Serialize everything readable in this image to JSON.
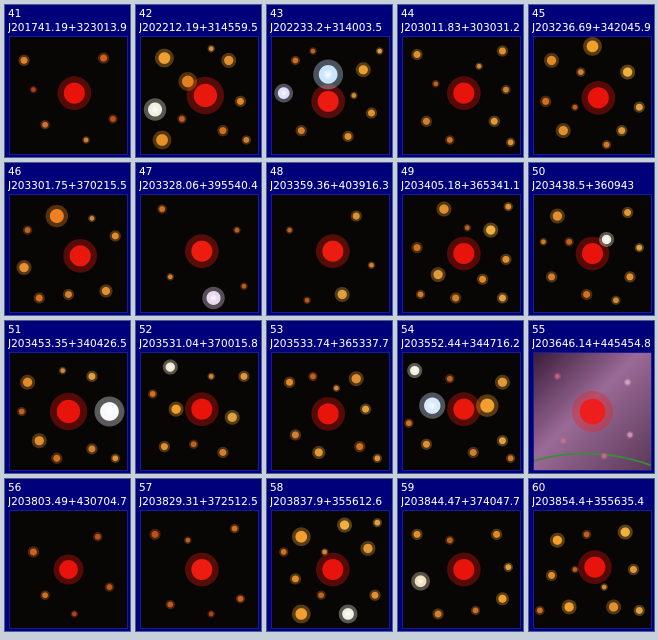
{
  "background_color": "#c8d0dc",
  "cell_color": "#00007a",
  "tiles": [
    {
      "index": "41",
      "name": "J201741.19+323013.9",
      "scene": "red-star-in-sparse-field"
    },
    {
      "index": "42",
      "name": "J202212.19+314559.5",
      "scene": "red-star-in-crowded-field"
    },
    {
      "index": "43",
      "name": "J202233.2+314003.5",
      "scene": "red-star-beside-blue-star"
    },
    {
      "index": "44",
      "name": "J203011.83+303031.2",
      "scene": "red-star-in-crowded-field"
    },
    {
      "index": "45",
      "name": "J203236.69+342045.9",
      "scene": "red-star-in-crowded-field"
    },
    {
      "index": "46",
      "name": "J203301.75+370215.5",
      "scene": "red-star-with-orange-neighbor"
    },
    {
      "index": "47",
      "name": "J203328.06+395540.4",
      "scene": "red-star-with-lavender-star-below"
    },
    {
      "index": "48",
      "name": "J203359.36+403916.3",
      "scene": "red-star-in-sparse-field"
    },
    {
      "index": "49",
      "name": "J203405.18+365341.1",
      "scene": "red-star-in-crowded-field"
    },
    {
      "index": "50",
      "name": "J203438.5+360943",
      "scene": "red-star-in-crowded-field"
    },
    {
      "index": "51",
      "name": "J203453.35+340426.5",
      "scene": "red-star-beside-bright-white-star"
    },
    {
      "index": "52",
      "name": "J203531.04+370015.8",
      "scene": "red-star-in-crowded-field"
    },
    {
      "index": "53",
      "name": "J203533.74+365337.7",
      "scene": "red-star-in-crowded-field"
    },
    {
      "index": "54",
      "name": "J203552.44+344716.2",
      "scene": "red-star-beside-blue-star"
    },
    {
      "index": "55",
      "name": "J203646.14+445454.8",
      "scene": "red-star-in-pink-nebula"
    },
    {
      "index": "56",
      "name": "J203803.49+430704.7",
      "scene": "red-star-in-sparse-field"
    },
    {
      "index": "57",
      "name": "J203829.31+372512.5",
      "scene": "red-star-in-sparse-field"
    },
    {
      "index": "58",
      "name": "J203837.9+355612.6",
      "scene": "red-star-in-crowded-field"
    },
    {
      "index": "59",
      "name": "J203844.47+374047.7",
      "scene": "red-star-in-crowded-field"
    },
    {
      "index": "60",
      "name": "J203854.4+355635.4",
      "scene": "red-star-in-crowded-field"
    }
  ]
}
